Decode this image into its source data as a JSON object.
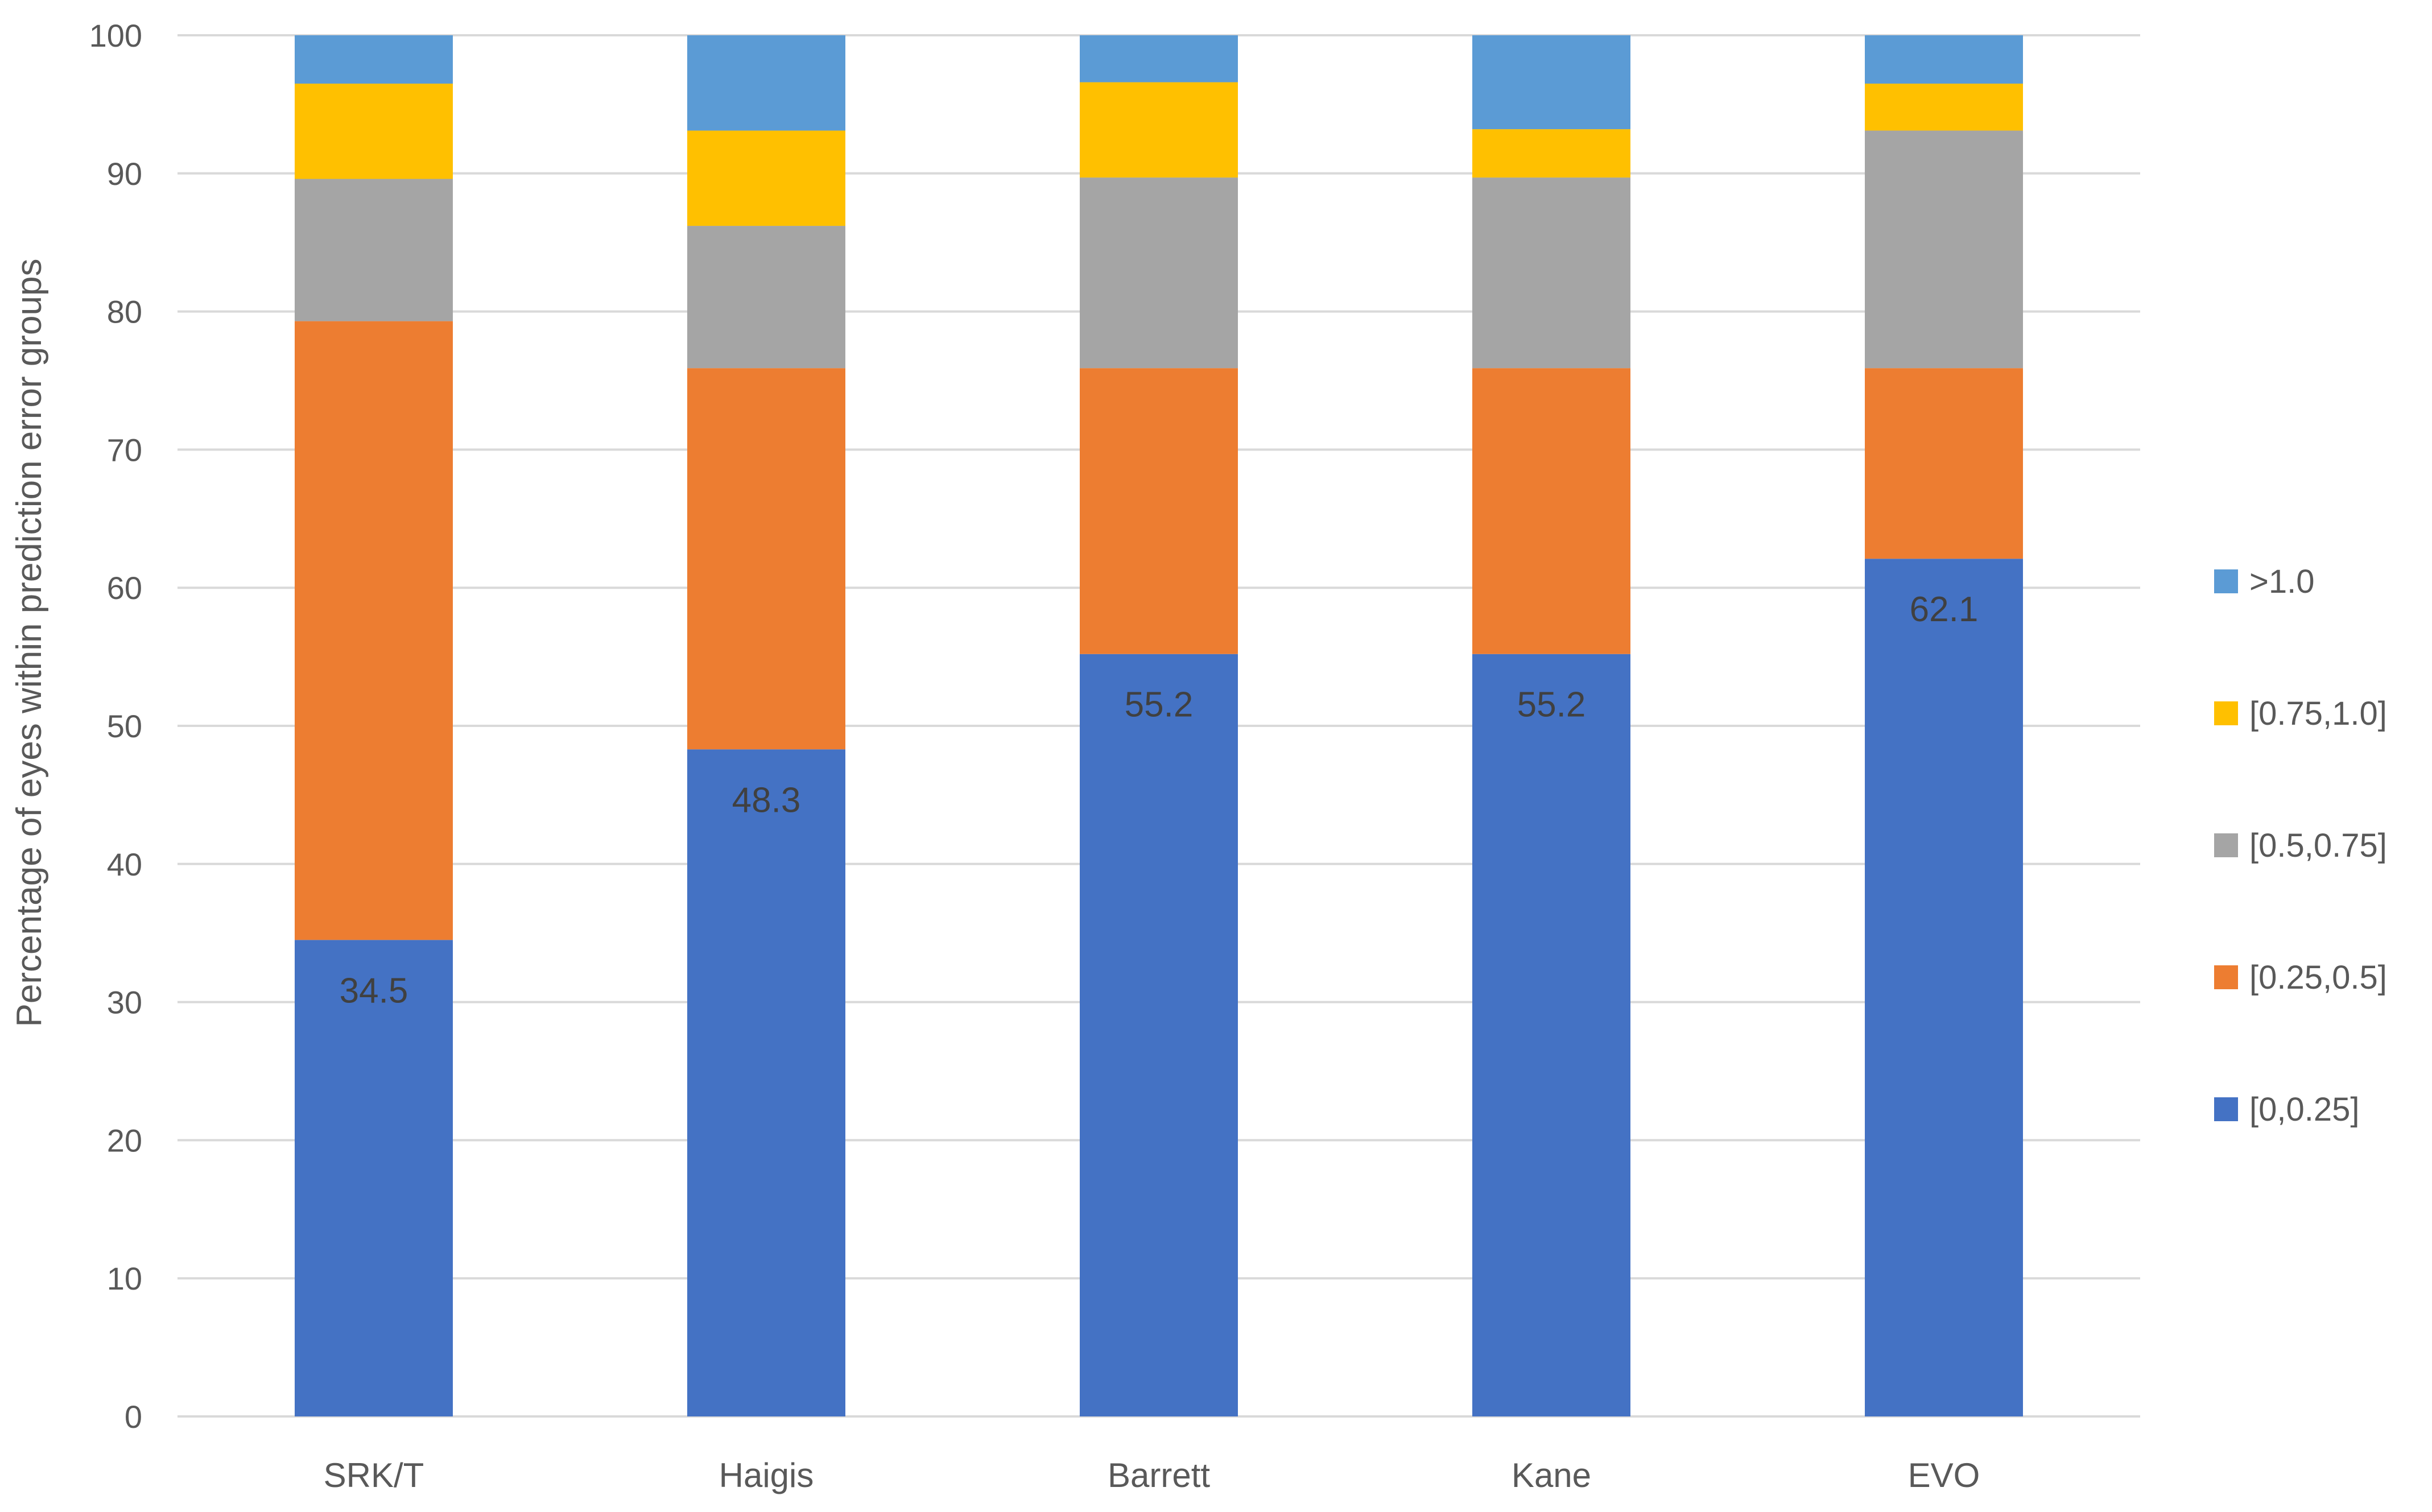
{
  "chart_data": {
    "type": "bar",
    "stacked": true,
    "categories": [
      "SRK/T",
      "Haigis",
      "Barrett",
      "Kane",
      "EVO"
    ],
    "series": [
      {
        "name": "[0,0.25]",
        "values": [
          34.5,
          48.3,
          55.2,
          55.2,
          62.1
        ],
        "color": "#4472C4"
      },
      {
        "name": "[0.25,0.5]",
        "values": [
          44.8,
          27.6,
          20.7,
          20.7,
          13.8
        ],
        "color": "#ED7D31"
      },
      {
        "name": "[0.5,0.75]",
        "values": [
          10.3,
          10.3,
          13.8,
          13.8,
          17.2
        ],
        "color": "#A5A5A5"
      },
      {
        "name": "[0.75,1.0]",
        "values": [
          6.9,
          6.9,
          6.9,
          3.5,
          3.4
        ],
        "color": "#FFC000"
      },
      {
        "name": ">1.0",
        "values": [
          3.5,
          6.9,
          3.4,
          6.8,
          3.5
        ],
        "color": "#5B9BD5"
      }
    ],
    "data_labels": {
      "series": "[0,0.25]",
      "values": [
        "34.5",
        "48.3",
        "55.2",
        "55.2",
        "62.1"
      ]
    },
    "title": "",
    "xlabel": "",
    "ylabel": "Percentage of eyes within prediction error groups",
    "ylim": [
      0,
      100
    ],
    "yticks": [
      "0",
      "10",
      "20",
      "30",
      "40",
      "50",
      "60",
      "70",
      "80",
      "90",
      "100"
    ],
    "grid": true,
    "legend_position": "right",
    "legend_order": [
      ">1.0",
      "[0.75,1.0]",
      "[0.5,0.75]",
      "[0.25,0.5]",
      "[0,0.25]"
    ],
    "colors": {
      "gridline": "#D9D9D9",
      "axis_text": "#595959",
      "data_label": "#404040"
    }
  }
}
